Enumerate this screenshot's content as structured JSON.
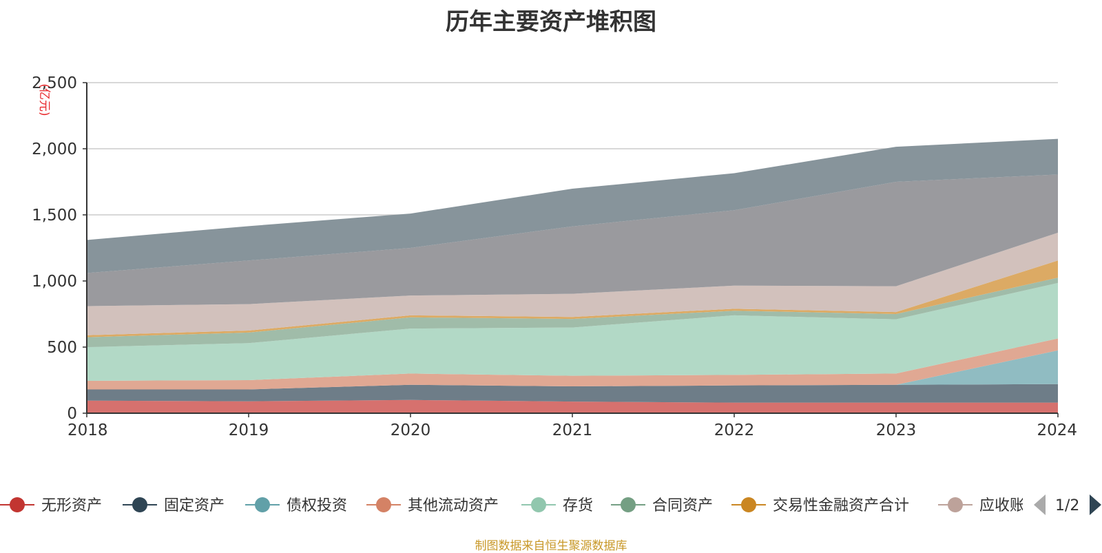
{
  "chart_data": {
    "type": "area",
    "stacked": true,
    "title": "历年主要资产堆积图",
    "unit": "(亿元)",
    "x": [
      "2018",
      "2019",
      "2020",
      "2021",
      "2022",
      "2023",
      "2024"
    ],
    "ylim": [
      0,
      2500
    ],
    "yticks": [
      "0",
      "500",
      "1,000",
      "1,500",
      "2,000",
      "2,500"
    ],
    "grid": true,
    "series": [
      {
        "name": "无形资产",
        "color": "#c23531",
        "fill": "#d6716e",
        "values": [
          95,
          90,
          100,
          88,
          80,
          80,
          80
        ]
      },
      {
        "name": "固定资产",
        "color": "#2f4554",
        "fill": "#6e7d88",
        "values": [
          85,
          90,
          115,
          115,
          130,
          135,
          140
        ]
      },
      {
        "name": "债权投资",
        "color": "#61a0a8",
        "fill": "#90bcc2",
        "values": [
          0,
          0,
          0,
          0,
          0,
          0,
          255
        ]
      },
      {
        "name": "其他流动资产",
        "color": "#d48265",
        "fill": "#e0a893",
        "values": [
          65,
          70,
          85,
          80,
          80,
          85,
          90
        ]
      },
      {
        "name": "存货",
        "color": "#91c7ae",
        "fill": "#b2d9c6",
        "values": [
          255,
          280,
          340,
          365,
          450,
          410,
          420
        ]
      },
      {
        "name": "合同资产",
        "color": "#749f83",
        "fill": "#a0bca9",
        "values": [
          75,
          80,
          85,
          65,
          35,
          40,
          40
        ]
      },
      {
        "name": "交易性金融资产合计",
        "color": "#ca8622",
        "fill": "#dcaa64",
        "values": [
          15,
          15,
          15,
          15,
          15,
          15,
          130
        ]
      },
      {
        "name": "应收账款",
        "color": "#bda29a",
        "fill": "#d2c1bc",
        "values": [
          220,
          200,
          150,
          175,
          175,
          195,
          210
        ]
      },
      {
        "name": "",
        "color": "#6e7074",
        "fill": "#9a9a9e",
        "values": [
          250,
          330,
          360,
          510,
          570,
          790,
          440
        ]
      },
      {
        "name": "",
        "color": "#546570",
        "fill": "#87949b",
        "values": [
          250,
          260,
          260,
          285,
          280,
          265,
          270
        ]
      }
    ],
    "legend": {
      "position": "bottom",
      "visible_items": [
        "无形资产",
        "固定资产",
        "债权投资",
        "其他流动资产",
        "存货",
        "合同资产",
        "交易性金融资产合计",
        "应收账款"
      ],
      "page": "1/2"
    }
  },
  "source_note": "制图数据来自恒生聚源数据库"
}
